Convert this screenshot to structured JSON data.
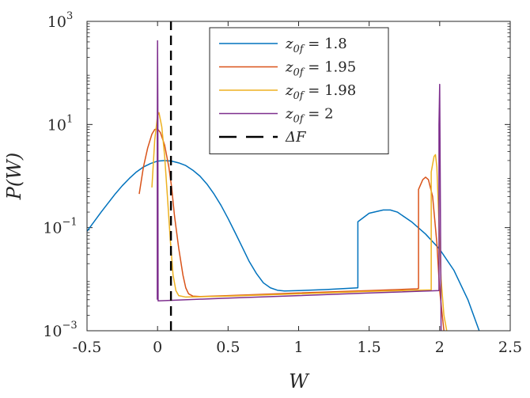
{
  "chart_data": {
    "type": "line",
    "title": "",
    "xlabel": "W",
    "ylabel": "P(W)",
    "xlim": [
      -0.5,
      2.5
    ],
    "ylim_log10": [
      -3,
      3
    ],
    "y_scale": "log",
    "grid": false,
    "legend_position": "top-right",
    "x_ticks": [
      -0.5,
      0,
      0.5,
      1,
      1.5,
      2,
      2.5
    ],
    "x_tick_labels": [
      "-0.5",
      "0",
      "0.5",
      "1",
      "1.5",
      "2",
      "2.5"
    ],
    "y_ticks_log10": [
      -3,
      -1,
      1,
      3
    ],
    "y_tick_labels": [
      {
        "base": "10",
        "exp": "−3"
      },
      {
        "base": "10",
        "exp": "−1"
      },
      {
        "base": "10",
        "exp": "1"
      },
      {
        "base": "10",
        "exp": "3"
      }
    ],
    "series": [
      {
        "name": "z0f = 1.8",
        "legend_main": "z",
        "legend_sub": "0f",
        "legend_rest": " = 1.8",
        "color": "#0072BD",
        "dash": "",
        "x": [
          -0.5,
          -0.45,
          -0.4,
          -0.35,
          -0.3,
          -0.25,
          -0.2,
          -0.15,
          -0.1,
          -0.05,
          0.0,
          0.05,
          0.1,
          0.15,
          0.2,
          0.25,
          0.3,
          0.35,
          0.4,
          0.45,
          0.5,
          0.55,
          0.6,
          0.65,
          0.7,
          0.75,
          0.8,
          0.85,
          0.9,
          1.0,
          1.2,
          1.42,
          1.42,
          1.5,
          1.6,
          1.65,
          1.7,
          1.8,
          1.9,
          2.0,
          2.1,
          2.2,
          2.28
        ],
        "y": [
          0.085,
          0.13,
          0.2,
          0.3,
          0.45,
          0.65,
          0.9,
          1.2,
          1.5,
          1.75,
          1.95,
          2.0,
          1.95,
          1.8,
          1.6,
          1.3,
          1.0,
          0.7,
          0.45,
          0.27,
          0.15,
          0.08,
          0.042,
          0.022,
          0.013,
          0.0085,
          0.0068,
          0.0061,
          0.0059,
          0.006,
          0.0063,
          0.0068,
          0.13,
          0.19,
          0.22,
          0.22,
          0.2,
          0.13,
          0.075,
          0.038,
          0.015,
          0.004,
          0.001
        ]
      },
      {
        "name": "z0f = 1.95",
        "legend_main": "z",
        "legend_sub": "0f",
        "legend_rest": " = 1.95",
        "color": "#D95319",
        "dash": "",
        "x": [
          -0.13,
          -0.1,
          -0.07,
          -0.04,
          -0.02,
          0.0,
          0.02,
          0.05,
          0.08,
          0.1,
          0.12,
          0.15,
          0.18,
          0.2,
          0.22,
          0.25,
          0.3,
          0.5,
          1.0,
          1.5,
          1.84,
          1.85,
          1.85,
          1.88,
          1.9,
          1.92,
          1.95,
          1.98,
          2.0,
          2.03
        ],
        "y": [
          0.45,
          1.5,
          3.5,
          6.5,
          8.0,
          8.2,
          7.0,
          4.0,
          1.5,
          0.6,
          0.17,
          0.04,
          0.012,
          0.0068,
          0.0052,
          0.0047,
          0.0046,
          0.0048,
          0.0054,
          0.006,
          0.0065,
          0.0066,
          0.55,
          0.85,
          0.95,
          0.85,
          0.4,
          0.05,
          0.006,
          0.001
        ]
      },
      {
        "name": "z0f = 1.98",
        "legend_main": "z",
        "legend_sub": "0f",
        "legend_rest": " = 1.98",
        "color": "#EDB120",
        "dash": "",
        "x": [
          -0.04,
          -0.02,
          0.0,
          0.01,
          0.03,
          0.05,
          0.07,
          0.09,
          0.11,
          0.13,
          0.15,
          0.2,
          0.5,
          1.0,
          1.5,
          1.94,
          1.94,
          1.96,
          1.97,
          1.98,
          2.0,
          2.01,
          2.03,
          2.05
        ],
        "y": [
          0.6,
          5.0,
          15.0,
          17.0,
          9.0,
          2.5,
          0.4,
          0.06,
          0.012,
          0.006,
          0.0048,
          0.0045,
          0.0047,
          0.0052,
          0.0058,
          0.0062,
          1.2,
          2.4,
          2.6,
          1.5,
          0.05,
          0.01,
          0.002,
          0.001
        ]
      },
      {
        "name": "z0f = 2",
        "legend_main": "z",
        "legend_sub": "0f",
        "legend_rest": " = 2",
        "color": "#7E2F8E",
        "dash": "",
        "x": [
          -0.002,
          -0.002,
          0.0,
          0.002,
          0.004,
          0.004,
          0.5,
          1.0,
          1.5,
          1.995,
          1.995,
          2.0,
          2.01
        ],
        "y": [
          0.004,
          5.0,
          420.0,
          30.0,
          0.004,
          0.0038,
          0.0043,
          0.0048,
          0.0054,
          0.006,
          10.0,
          60.0,
          0.001
        ]
      },
      {
        "name": "ΔF",
        "legend_main": "ΔF",
        "legend_sub": "",
        "legend_rest": "",
        "color": "#000000",
        "dash": "12,7",
        "x": [
          0.095,
          0.095
        ],
        "y": [
          0.001,
          1000
        ]
      }
    ]
  }
}
